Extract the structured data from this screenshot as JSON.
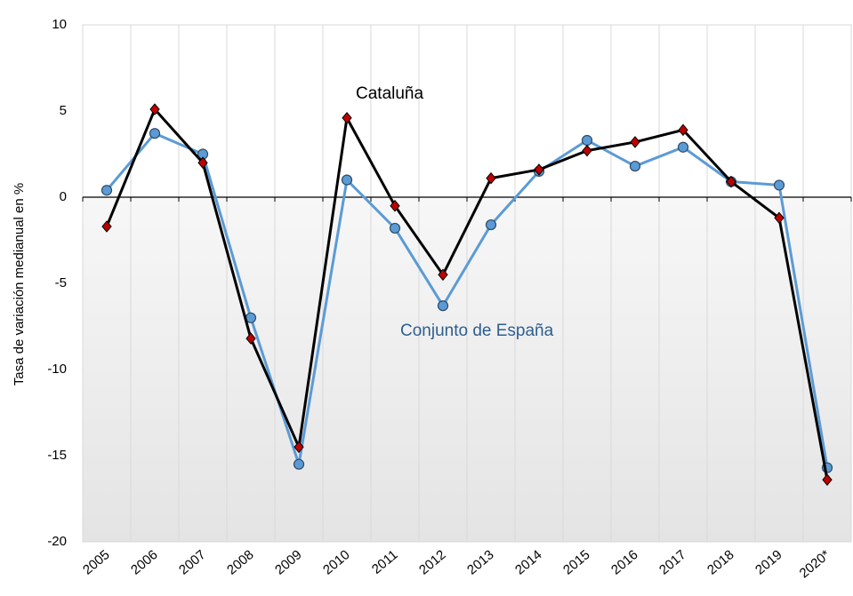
{
  "chart_data": {
    "type": "line",
    "y_label": "Tasa de variación medianual en %",
    "annotations": [
      "Cataluña",
      "Conjunto de España"
    ],
    "categories": [
      "2005",
      "2006",
      "2007",
      "2008",
      "2009",
      "2010",
      "2011",
      "2012",
      "2013",
      "2014",
      "2015",
      "2016",
      "2017",
      "2018",
      "2019",
      "2020*"
    ],
    "series": [
      {
        "name": "Conjunto de España",
        "color": "#5b9bd5",
        "marker": "circle",
        "marker_color": "#5b9bd5",
        "values": [
          0.4,
          3.7,
          2.5,
          -7.0,
          -15.5,
          1.0,
          -1.8,
          -6.3,
          -1.6,
          1.5,
          3.3,
          1.8,
          2.9,
          0.9,
          0.7,
          -15.7
        ]
      },
      {
        "name": "Cataluña",
        "color": "#000000",
        "marker": "diamond",
        "marker_color": "#c00000",
        "values": [
          -1.7,
          5.1,
          2.0,
          -8.2,
          -14.5,
          4.6,
          -0.5,
          -4.5,
          1.1,
          1.6,
          2.7,
          3.2,
          3.9,
          0.9,
          -1.2,
          -16.4
        ]
      }
    ],
    "ylim": [
      -20,
      10
    ],
    "yticks": [
      -20,
      -15,
      -10,
      -5,
      0,
      5,
      10
    ]
  }
}
